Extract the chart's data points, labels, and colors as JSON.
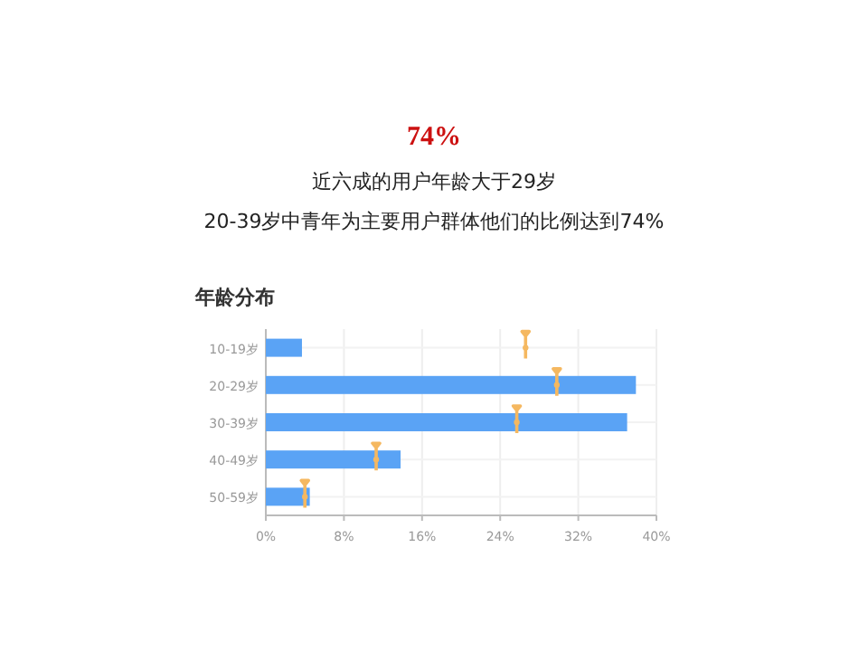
{
  "chart_data": {
    "type": "bar",
    "orientation": "horizontal",
    "title": "年龄分布",
    "annotations": [
      "74%",
      "近六成的用户年龄大于29岁",
      "20-39岁中青年为主要用户群体他们的比例达到74%"
    ],
    "categories": [
      "10-19岁",
      "20-29岁",
      "30-39岁",
      "40-49岁",
      "50-59岁"
    ],
    "series": [
      {
        "color": "#5aa3f5",
        "values": [
          3.7,
          37.9,
          37.0,
          13.8,
          4.5
        ]
      },
      {
        "type": "scatter",
        "color": "#f5b860",
        "values": [
          26.6,
          29.8,
          25.7,
          11.3,
          4.0
        ]
      }
    ],
    "xlim": [
      0,
      40
    ],
    "xticks": [
      {
        "value": 0,
        "label": "0%"
      },
      {
        "value": 8,
        "label": "8%"
      },
      {
        "value": 16,
        "label": "16%"
      },
      {
        "value": 24,
        "label": "24%"
      },
      {
        "value": 32,
        "label": "32%"
      },
      {
        "value": 40,
        "label": "40%"
      }
    ],
    "grid": true
  }
}
